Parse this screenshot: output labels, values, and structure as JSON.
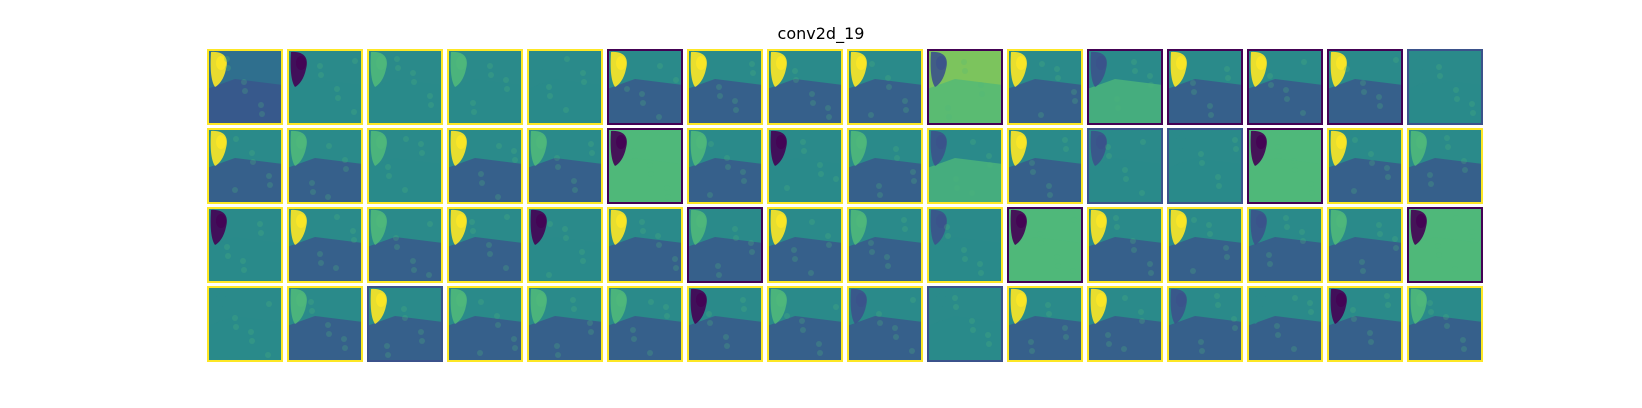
{
  "title": "conv2d_19",
  "grid": {
    "rows": 4,
    "cols": 16
  },
  "colormap": [
    "#440154",
    "#3b528b",
    "#21918c",
    "#5ec962",
    "#fde725"
  ],
  "palette": {
    "dark": "#440154",
    "navy": "#3b528b",
    "teal": "#2a8a8a",
    "blueteal": "#2f6f8e",
    "green": "#4fb87a",
    "lightgreen": "#7cc45d",
    "yellow": "#fde725"
  },
  "tiles": [
    {
      "base": "blueteal",
      "spot": "yellow",
      "lower": "navy",
      "border": "yellow"
    },
    {
      "base": "teal",
      "spot": "dark",
      "lower": "teal",
      "border": "yellow"
    },
    {
      "base": "teal",
      "spot": "green",
      "lower": "teal",
      "border": "yellow"
    },
    {
      "base": "teal",
      "spot": "green",
      "lower": "teal",
      "border": "yellow"
    },
    {
      "base": "teal",
      "spot": "teal",
      "lower": "teal",
      "border": "yellow"
    },
    {
      "base": "teal",
      "spot": "yellow",
      "lower": "navy",
      "border": "dark"
    },
    {
      "base": "teal",
      "spot": "yellow",
      "lower": "navy",
      "border": "yellow"
    },
    {
      "base": "teal",
      "spot": "yellow",
      "lower": "navy",
      "border": "yellow"
    },
    {
      "base": "teal",
      "spot": "yellow",
      "lower": "navy",
      "border": "yellow"
    },
    {
      "base": "lightgreen",
      "spot": "navy",
      "lower": "green",
      "border": "dark"
    },
    {
      "base": "teal",
      "spot": "yellow",
      "lower": "navy",
      "border": "yellow"
    },
    {
      "base": "teal",
      "spot": "navy",
      "lower": "green",
      "border": "dark"
    },
    {
      "base": "teal",
      "spot": "yellow",
      "lower": "navy",
      "border": "dark"
    },
    {
      "base": "teal",
      "spot": "yellow",
      "lower": "navy",
      "border": "dark"
    },
    {
      "base": "teal",
      "spot": "yellow",
      "lower": "navy",
      "border": "dark"
    },
    {
      "base": "teal",
      "spot": "teal",
      "lower": "teal",
      "border": "navy"
    },
    {
      "base": "teal",
      "spot": "yellow",
      "lower": "navy",
      "border": "yellow"
    },
    {
      "base": "teal",
      "spot": "green",
      "lower": "navy",
      "border": "yellow"
    },
    {
      "base": "teal",
      "spot": "green",
      "lower": "teal",
      "border": "yellow"
    },
    {
      "base": "teal",
      "spot": "yellow",
      "lower": "navy",
      "border": "yellow"
    },
    {
      "base": "teal",
      "spot": "green",
      "lower": "navy",
      "border": "yellow"
    },
    {
      "base": "green",
      "spot": "dark",
      "lower": "green",
      "border": "dark"
    },
    {
      "base": "teal",
      "spot": "green",
      "lower": "navy",
      "border": "yellow"
    },
    {
      "base": "teal",
      "spot": "dark",
      "lower": "teal",
      "border": "yellow"
    },
    {
      "base": "teal",
      "spot": "green",
      "lower": "navy",
      "border": "yellow"
    },
    {
      "base": "teal",
      "spot": "navy",
      "lower": "green",
      "border": "yellow"
    },
    {
      "base": "teal",
      "spot": "yellow",
      "lower": "navy",
      "border": "yellow"
    },
    {
      "base": "teal",
      "spot": "navy",
      "lower": "teal",
      "border": "navy"
    },
    {
      "base": "teal",
      "spot": "teal",
      "lower": "teal",
      "border": "navy"
    },
    {
      "base": "green",
      "spot": "dark",
      "lower": "green",
      "border": "dark"
    },
    {
      "base": "teal",
      "spot": "yellow",
      "lower": "navy",
      "border": "yellow"
    },
    {
      "base": "teal",
      "spot": "green",
      "lower": "navy",
      "border": "yellow"
    },
    {
      "base": "teal",
      "spot": "dark",
      "lower": "teal",
      "border": "yellow"
    },
    {
      "base": "teal",
      "spot": "yellow",
      "lower": "navy",
      "border": "yellow"
    },
    {
      "base": "teal",
      "spot": "green",
      "lower": "navy",
      "border": "yellow"
    },
    {
      "base": "teal",
      "spot": "yellow",
      "lower": "navy",
      "border": "yellow"
    },
    {
      "base": "teal",
      "spot": "dark",
      "lower": "teal",
      "border": "yellow"
    },
    {
      "base": "teal",
      "spot": "yellow",
      "lower": "navy",
      "border": "yellow"
    },
    {
      "base": "teal",
      "spot": "green",
      "lower": "navy",
      "border": "dark"
    },
    {
      "base": "teal",
      "spot": "yellow",
      "lower": "navy",
      "border": "yellow"
    },
    {
      "base": "teal",
      "spot": "green",
      "lower": "navy",
      "border": "yellow"
    },
    {
      "base": "teal",
      "spot": "navy",
      "lower": "teal",
      "border": "yellow"
    },
    {
      "base": "green",
      "spot": "dark",
      "lower": "green",
      "border": "dark"
    },
    {
      "base": "teal",
      "spot": "yellow",
      "lower": "navy",
      "border": "yellow"
    },
    {
      "base": "teal",
      "spot": "yellow",
      "lower": "navy",
      "border": "yellow"
    },
    {
      "base": "teal",
      "spot": "navy",
      "lower": "navy",
      "border": "yellow"
    },
    {
      "base": "teal",
      "spot": "green",
      "lower": "navy",
      "border": "yellow"
    },
    {
      "base": "green",
      "spot": "dark",
      "lower": "green",
      "border": "dark"
    },
    {
      "base": "teal",
      "spot": "teal",
      "lower": "teal",
      "border": "yellow"
    },
    {
      "base": "teal",
      "spot": "green",
      "lower": "navy",
      "border": "yellow"
    },
    {
      "base": "teal",
      "spot": "yellow",
      "lower": "navy",
      "border": "navy"
    },
    {
      "base": "teal",
      "spot": "green",
      "lower": "navy",
      "border": "yellow"
    },
    {
      "base": "teal",
      "spot": "green",
      "lower": "navy",
      "border": "yellow"
    },
    {
      "base": "teal",
      "spot": "green",
      "lower": "navy",
      "border": "yellow"
    },
    {
      "base": "teal",
      "spot": "dark",
      "lower": "navy",
      "border": "yellow"
    },
    {
      "base": "teal",
      "spot": "green",
      "lower": "navy",
      "border": "yellow"
    },
    {
      "base": "teal",
      "spot": "navy",
      "lower": "navy",
      "border": "yellow"
    },
    {
      "base": "teal",
      "spot": "teal",
      "lower": "teal",
      "border": "navy"
    },
    {
      "base": "teal",
      "spot": "yellow",
      "lower": "navy",
      "border": "yellow"
    },
    {
      "base": "teal",
      "spot": "yellow",
      "lower": "navy",
      "border": "yellow"
    },
    {
      "base": "teal",
      "spot": "navy",
      "lower": "navy",
      "border": "yellow"
    },
    {
      "base": "teal",
      "spot": "teal",
      "lower": "navy",
      "border": "yellow"
    },
    {
      "base": "teal",
      "spot": "dark",
      "lower": "navy",
      "border": "yellow"
    },
    {
      "base": "teal",
      "spot": "green",
      "lower": "navy",
      "border": "yellow"
    }
  ]
}
